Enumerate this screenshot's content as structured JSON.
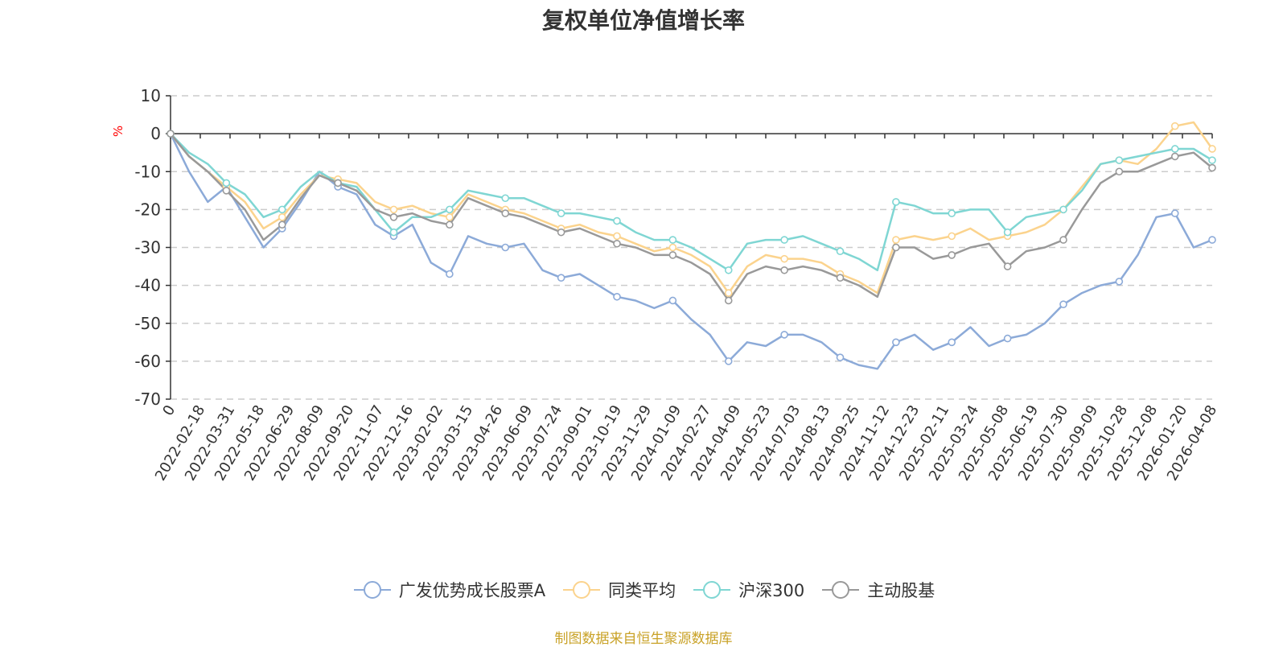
{
  "chart_data": {
    "type": "line",
    "title": "复权单位净值增长率",
    "ylabel": "%",
    "xlabel": "",
    "ylim": [
      -70,
      10
    ],
    "yticks": [
      10,
      0,
      -10,
      -20,
      -30,
      -40,
      -50,
      -60,
      -70
    ],
    "grid": true,
    "legend_position": "bottom-center",
    "source": "制图数据来自恒生聚源数据库",
    "x_start_label": "0",
    "x_ticks": [
      "2022-02-18",
      "2022-03-31",
      "2022-05-18",
      "2022-06-29",
      "2022-08-09",
      "2022-09-20",
      "2022-11-07",
      "2022-12-16",
      "2023-02-02",
      "2023-03-15",
      "2023-04-26",
      "2023-06-09",
      "2023-07-24",
      "2023-09-01",
      "2023-10-19",
      "2023-11-29",
      "2024-01-09",
      "2024-02-27",
      "2024-04-09",
      "2024-05-23",
      "2024-07-03",
      "2024-08-13",
      "2024-09-25",
      "2024-11-12",
      "2024-12-23",
      "2025-02-11",
      "2025-03-24",
      "2025-05-08",
      "2025-06-19",
      "2025-07-30",
      "2025-09-09",
      "2025-10-28",
      "2025-12-08",
      "2026-01-20",
      "2026-04-08"
    ],
    "series": [
      {
        "name": "广发优势成长股票A",
        "color": "#8caad8",
        "values": [
          0,
          -10,
          -18,
          -14,
          -22,
          -30,
          -25,
          -18,
          -10,
          -14,
          -16,
          -24,
          -27,
          -24,
          -34,
          -37,
          -27,
          -29,
          -30,
          -29,
          -36,
          -38,
          -37,
          -40,
          -43,
          -44,
          -46,
          -44,
          -49,
          -53,
          -60,
          -55,
          -56,
          -53,
          -53,
          -55,
          -59,
          -61,
          -62,
          -55,
          -53,
          -57,
          -55,
          -51,
          -56,
          -54,
          -53,
          -50,
          -45,
          -42,
          -40,
          -39,
          -32,
          -22,
          -21,
          -30,
          -28
        ]
      },
      {
        "name": "同类平均",
        "color": "#fbd38d",
        "values": [
          0,
          -6,
          -10,
          -14,
          -18,
          -25,
          -22,
          -16,
          -11,
          -12,
          -13,
          -18,
          -20,
          -19,
          -21,
          -22,
          -16,
          -18,
          -20,
          -21,
          -23,
          -25,
          -24,
          -26,
          -27,
          -29,
          -31,
          -30,
          -32,
          -35,
          -42,
          -35,
          -32,
          -33,
          -33,
          -34,
          -37,
          -39,
          -42,
          -28,
          -27,
          -28,
          -27,
          -25,
          -28,
          -27,
          -26,
          -24,
          -20,
          -14,
          -8,
          -7,
          -8,
          -4,
          2,
          3,
          -4
        ]
      },
      {
        "name": "沪深300",
        "color": "#7fd6d3",
        "values": [
          0,
          -5,
          -8,
          -13,
          -16,
          -22,
          -20,
          -14,
          -10,
          -13,
          -14,
          -20,
          -26,
          -22,
          -22,
          -20,
          -15,
          -16,
          -17,
          -17,
          -19,
          -21,
          -21,
          -22,
          -23,
          -26,
          -28,
          -28,
          -30,
          -33,
          -36,
          -29,
          -28,
          -28,
          -27,
          -29,
          -31,
          -33,
          -36,
          -18,
          -19,
          -21,
          -21,
          -20,
          -20,
          -26,
          -22,
          -21,
          -20,
          -15,
          -8,
          -7,
          -6,
          -5,
          -4,
          -4,
          -7
        ]
      },
      {
        "name": "主动股基",
        "color": "#999999",
        "values": [
          0,
          -6,
          -10,
          -15,
          -20,
          -28,
          -24,
          -17,
          -11,
          -13,
          -15,
          -20,
          -22,
          -21,
          -23,
          -24,
          -17,
          -19,
          -21,
          -22,
          -24,
          -26,
          -25,
          -27,
          -29,
          -30,
          -32,
          -32,
          -34,
          -37,
          -44,
          -37,
          -35,
          -36,
          -35,
          -36,
          -38,
          -40,
          -43,
          -30,
          -30,
          -33,
          -32,
          -30,
          -29,
          -35,
          -31,
          -30,
          -28,
          -20,
          -13,
          -10,
          -10,
          -8,
          -6,
          -5,
          -9
        ]
      }
    ]
  }
}
